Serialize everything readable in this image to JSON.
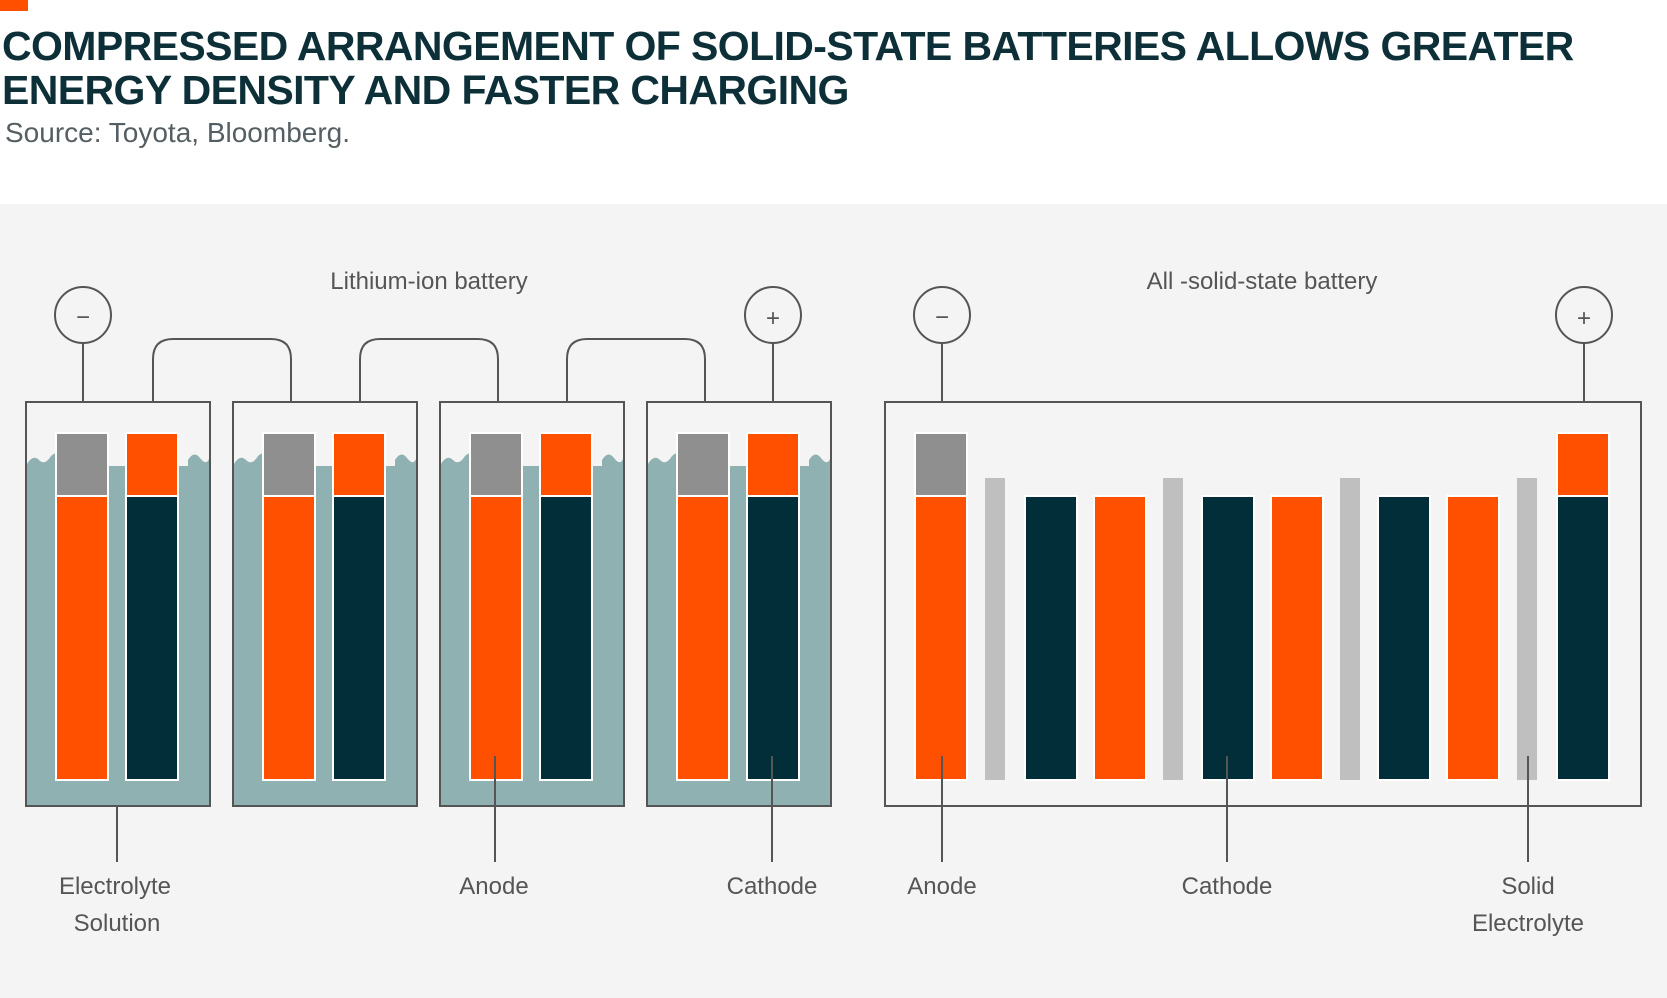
{
  "header": {
    "title": "COMPRESSED ARRANGEMENT OF SOLID-STATE BATTERIES ALLOWS GREATER ENERGY DENSITY AND FASTER CHARGING",
    "source": "Source: Toyota, Bloomberg."
  },
  "diagram": {
    "lithium_ion": {
      "title": "Lithium-ion battery",
      "negative_terminal": "−",
      "positive_terminal": "+",
      "cell_count": 4,
      "labels": {
        "electrolyte_line1": "Electrolyte",
        "electrolyte_line2": "Solution",
        "anode": "Anode",
        "cathode": "Cathode"
      }
    },
    "solid_state": {
      "title": "All -solid-state battery",
      "negative_terminal": "−",
      "positive_terminal": "+",
      "labels": {
        "anode": "Anode",
        "cathode": "Cathode",
        "solid_line1": "Solid",
        "solid_line2": "Electrolyte"
      }
    }
  },
  "colors": {
    "title": "#0d2f38",
    "accent": "#ff5000",
    "anode": "#ff5000",
    "cathode": "#012e38",
    "tab": "#8f8f8f",
    "electrolyte": "#8fb1b2",
    "solid_electrolyte": "#bfbfbf",
    "outline": "#555555",
    "panel": "#f4f4f4"
  }
}
